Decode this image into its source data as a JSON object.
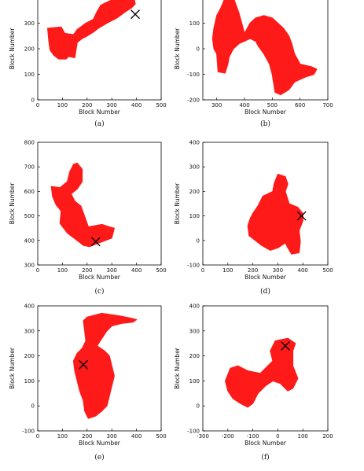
{
  "colors": {
    "region": "#ff1a1a",
    "marker": "#000000",
    "axis": "#000000"
  },
  "chart_data": [
    {
      "type": "area",
      "caption": "(a)",
      "xlabel": "Block Number",
      "ylabel": "Block Number",
      "xlim": [
        0,
        500
      ],
      "ylim": [
        0,
        400
      ],
      "xticks": [
        0,
        100,
        200,
        300,
        400,
        500
      ],
      "yticks": [
        0,
        100,
        200,
        300,
        400
      ],
      "region": [
        [
          40,
          280
        ],
        [
          95,
          285
        ],
        [
          110,
          260
        ],
        [
          145,
          255
        ],
        [
          160,
          275
        ],
        [
          195,
          300
        ],
        [
          225,
          315
        ],
        [
          240,
          345
        ],
        [
          255,
          370
        ],
        [
          275,
          380
        ],
        [
          310,
          395
        ],
        [
          345,
          400
        ],
        [
          390,
          400
        ],
        [
          395,
          375
        ],
        [
          380,
          360
        ],
        [
          355,
          345
        ],
        [
          320,
          320
        ],
        [
          280,
          300
        ],
        [
          245,
          280
        ],
        [
          225,
          265
        ],
        [
          200,
          250
        ],
        [
          180,
          240
        ],
        [
          160,
          225
        ],
        [
          150,
          165
        ],
        [
          125,
          170
        ],
        [
          115,
          160
        ],
        [
          85,
          160
        ],
        [
          65,
          175
        ],
        [
          50,
          195
        ],
        [
          45,
          230
        ]
      ],
      "marker": [
        395,
        335
      ]
    },
    {
      "type": "area",
      "caption": "(b)",
      "xlabel": "Block Number",
      "ylabel": "Block Number",
      "xlim": [
        250,
        700
      ],
      "ylim": [
        -200,
        200
      ],
      "xticks": [
        300,
        400,
        500,
        600,
        700
      ],
      "yticks": [
        -200,
        -100,
        0,
        100
      ],
      "region": [
        [
          330,
          200
        ],
        [
          315,
          160
        ],
        [
          300,
          130
        ],
        [
          290,
          80
        ],
        [
          285,
          40
        ],
        [
          290,
          0
        ],
        [
          300,
          -20
        ],
        [
          305,
          -90
        ],
        [
          330,
          -95
        ],
        [
          340,
          -60
        ],
        [
          345,
          -30
        ],
        [
          360,
          0
        ],
        [
          380,
          20
        ],
        [
          400,
          30
        ],
        [
          420,
          40
        ],
        [
          440,
          30
        ],
        [
          450,
          10
        ],
        [
          470,
          -20
        ],
        [
          490,
          -60
        ],
        [
          500,
          -100
        ],
        [
          510,
          -170
        ],
        [
          530,
          -180
        ],
        [
          560,
          -160
        ],
        [
          580,
          -130
        ],
        [
          620,
          -110
        ],
        [
          650,
          -100
        ],
        [
          660,
          -80
        ],
        [
          640,
          -70
        ],
        [
          600,
          -60
        ],
        [
          580,
          -20
        ],
        [
          570,
          20
        ],
        [
          560,
          50
        ],
        [
          540,
          80
        ],
        [
          500,
          120
        ],
        [
          470,
          130
        ],
        [
          440,
          120
        ],
        [
          420,
          100
        ],
        [
          410,
          80
        ],
        [
          400,
          60
        ],
        [
          390,
          100
        ],
        [
          380,
          140
        ],
        [
          370,
          170
        ],
        [
          360,
          200
        ]
      ],
      "marker": null
    },
    {
      "type": "area",
      "caption": "(c)",
      "xlabel": "Block Number",
      "ylabel": "Block Number",
      "xlim": [
        0,
        500
      ],
      "ylim": [
        300,
        800
      ],
      "xticks": [
        0,
        100,
        200,
        300,
        400,
        500
      ],
      "yticks": [
        300,
        400,
        500,
        600,
        700,
        800
      ],
      "region": [
        [
          160,
          715
        ],
        [
          180,
          690
        ],
        [
          180,
          640
        ],
        [
          160,
          610
        ],
        [
          135,
          590
        ],
        [
          150,
          560
        ],
        [
          175,
          540
        ],
        [
          205,
          455
        ],
        [
          260,
          465
        ],
        [
          290,
          455
        ],
        [
          310,
          450
        ],
        [
          300,
          410
        ],
        [
          260,
          395
        ],
        [
          235,
          385
        ],
        [
          210,
          375
        ],
        [
          185,
          380
        ],
        [
          160,
          400
        ],
        [
          120,
          430
        ],
        [
          90,
          470
        ],
        [
          95,
          520
        ],
        [
          75,
          545
        ],
        [
          60,
          580
        ],
        [
          55,
          620
        ],
        [
          90,
          615
        ],
        [
          120,
          640
        ],
        [
          130,
          680
        ],
        [
          145,
          710
        ]
      ],
      "marker": [
        235,
        395
      ]
    },
    {
      "type": "area",
      "caption": "(d)",
      "xlabel": "Block Number",
      "ylabel": "Block Number",
      "xlim": [
        0,
        500
      ],
      "ylim": [
        -100,
        400
      ],
      "xticks": [
        0,
        100,
        200,
        300,
        400,
        500
      ],
      "yticks": [
        -100,
        0,
        100,
        200,
        300,
        400
      ],
      "region": [
        [
          300,
          270
        ],
        [
          330,
          260
        ],
        [
          340,
          230
        ],
        [
          330,
          200
        ],
        [
          345,
          150
        ],
        [
          380,
          135
        ],
        [
          400,
          110
        ],
        [
          400,
          80
        ],
        [
          385,
          40
        ],
        [
          390,
          -5
        ],
        [
          385,
          -50
        ],
        [
          355,
          -55
        ],
        [
          340,
          -30
        ],
        [
          330,
          -10
        ],
        [
          300,
          -30
        ],
        [
          270,
          -40
        ],
        [
          235,
          -20
        ],
        [
          210,
          0
        ],
        [
          185,
          20
        ],
        [
          180,
          60
        ],
        [
          190,
          90
        ],
        [
          200,
          110
        ],
        [
          220,
          140
        ],
        [
          240,
          180
        ],
        [
          260,
          190
        ],
        [
          280,
          200
        ],
        [
          285,
          230
        ]
      ],
      "marker": [
        395,
        100
      ]
    },
    {
      "type": "area",
      "caption": "(e)",
      "xlabel": "Block Number",
      "ylabel": "Block Number",
      "xlim": [
        0,
        500
      ],
      "ylim": [
        -100,
        400
      ],
      "xticks": [
        0,
        100,
        200,
        300,
        400,
        500
      ],
      "yticks": [
        -100,
        0,
        100,
        200,
        300,
        400
      ],
      "region": [
        [
          200,
          355
        ],
        [
          260,
          370
        ],
        [
          330,
          360
        ],
        [
          380,
          350
        ],
        [
          400,
          345
        ],
        [
          385,
          335
        ],
        [
          340,
          330
        ],
        [
          300,
          320
        ],
        [
          280,
          300
        ],
        [
          260,
          270
        ],
        [
          240,
          240
        ],
        [
          270,
          220
        ],
        [
          290,
          200
        ],
        [
          300,
          160
        ],
        [
          310,
          120
        ],
        [
          300,
          80
        ],
        [
          290,
          40
        ],
        [
          280,
          0
        ],
        [
          260,
          -20
        ],
        [
          235,
          -40
        ],
        [
          205,
          -50
        ],
        [
          190,
          -20
        ],
        [
          185,
          20
        ],
        [
          170,
          60
        ],
        [
          160,
          100
        ],
        [
          150,
          140
        ],
        [
          145,
          180
        ],
        [
          160,
          210
        ],
        [
          180,
          230
        ],
        [
          195,
          260
        ],
        [
          190,
          300
        ],
        [
          185,
          340
        ]
      ],
      "marker": [
        185,
        165
      ]
    },
    {
      "type": "area",
      "caption": "(f)",
      "xlabel": "Block Number",
      "ylabel": "Block Number",
      "xlim": [
        -300,
        200
      ],
      "ylim": [
        -100,
        400
      ],
      "xticks": [
        -300,
        -200,
        -100,
        0,
        100,
        200
      ],
      "yticks": [
        -100,
        0,
        100,
        200,
        300,
        400
      ],
      "region": [
        [
          -10,
          260
        ],
        [
          40,
          270
        ],
        [
          70,
          250
        ],
        [
          60,
          220
        ],
        [
          60,
          160
        ],
        [
          80,
          110
        ],
        [
          60,
          70
        ],
        [
          40,
          60
        ],
        [
          10,
          90
        ],
        [
          -20,
          100
        ],
        [
          -50,
          80
        ],
        [
          -80,
          50
        ],
        [
          -100,
          10
        ],
        [
          -120,
          -5
        ],
        [
          -150,
          10
        ],
        [
          -180,
          30
        ],
        [
          -200,
          60
        ],
        [
          -210,
          100
        ],
        [
          -190,
          150
        ],
        [
          -160,
          160
        ],
        [
          -120,
          140
        ],
        [
          -70,
          130
        ],
        [
          -40,
          160
        ],
        [
          -20,
          180
        ],
        [
          -30,
          220
        ]
      ],
      "marker": [
        30,
        240
      ]
    }
  ]
}
